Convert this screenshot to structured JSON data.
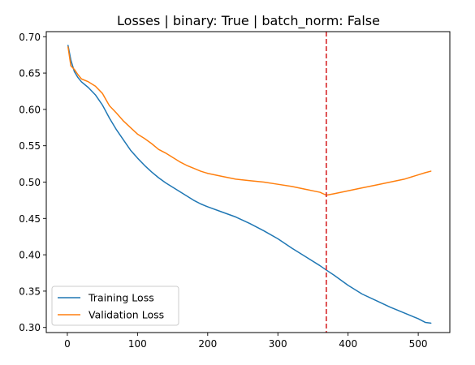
{
  "chart_data": {
    "type": "line",
    "title": "Losses | binary: True | batch_norm: False",
    "xlabel": "",
    "ylabel": "",
    "xlim": [
      -30,
      545
    ],
    "ylim": [
      0.293,
      0.707
    ],
    "xticks": [
      0,
      100,
      200,
      300,
      400,
      500
    ],
    "xtick_labels": [
      "0",
      "100",
      "200",
      "300",
      "400",
      "500"
    ],
    "yticks": [
      0.3,
      0.35,
      0.4,
      0.45,
      0.5,
      0.55,
      0.6,
      0.65,
      0.7
    ],
    "ytick_labels": [
      "0.30",
      "0.35",
      "0.40",
      "0.45",
      "0.50",
      "0.55",
      "0.60",
      "0.65",
      "0.70"
    ],
    "grid": false,
    "legend_position": "lower-left",
    "vline": {
      "x": 369,
      "color": "#d62728",
      "style": "dashed"
    },
    "series": [
      {
        "name": "Training Loss",
        "color": "#1f77b4",
        "x": [
          1,
          5,
          10,
          15,
          20,
          30,
          40,
          50,
          60,
          70,
          80,
          90,
          100,
          110,
          120,
          130,
          140,
          150,
          160,
          170,
          180,
          190,
          200,
          220,
          240,
          260,
          280,
          300,
          320,
          340,
          360,
          369,
          380,
          400,
          420,
          440,
          460,
          480,
          500,
          510,
          518
        ],
        "y": [
          0.688,
          0.668,
          0.652,
          0.644,
          0.638,
          0.63,
          0.62,
          0.606,
          0.588,
          0.572,
          0.558,
          0.544,
          0.533,
          0.523,
          0.514,
          0.506,
          0.499,
          0.493,
          0.487,
          0.481,
          0.475,
          0.47,
          0.466,
          0.459,
          0.452,
          0.443,
          0.433,
          0.422,
          0.409,
          0.397,
          0.385,
          0.379,
          0.372,
          0.358,
          0.346,
          0.337,
          0.328,
          0.32,
          0.312,
          0.307,
          0.306
        ]
      },
      {
        "name": "Validation Loss",
        "color": "#ff7f0e",
        "x": [
          1,
          5,
          10,
          15,
          20,
          30,
          40,
          50,
          60,
          70,
          80,
          90,
          100,
          110,
          120,
          130,
          140,
          150,
          160,
          170,
          180,
          190,
          200,
          220,
          240,
          260,
          280,
          300,
          320,
          340,
          360,
          369,
          380,
          400,
          420,
          440,
          460,
          480,
          500,
          510,
          518
        ],
        "y": [
          0.686,
          0.66,
          0.655,
          0.648,
          0.642,
          0.638,
          0.632,
          0.622,
          0.605,
          0.595,
          0.584,
          0.575,
          0.566,
          0.56,
          0.553,
          0.545,
          0.54,
          0.534,
          0.528,
          0.523,
          0.519,
          0.515,
          0.512,
          0.508,
          0.504,
          0.502,
          0.5,
          0.497,
          0.494,
          0.49,
          0.486,
          0.482,
          0.484,
          0.488,
          0.492,
          0.496,
          0.5,
          0.504,
          0.51,
          0.513,
          0.515
        ]
      }
    ]
  }
}
